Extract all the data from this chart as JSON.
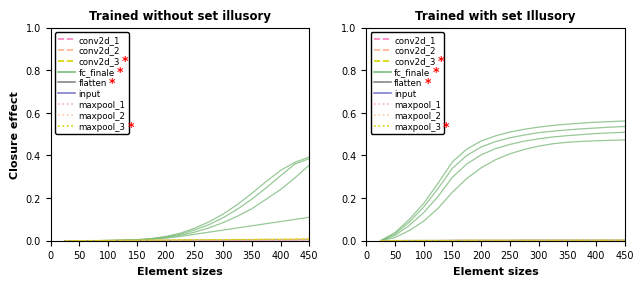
{
  "title_left": "Trained without set illusory",
  "title_right": "Trained with set Illusory",
  "xlabel": "Element sizes",
  "ylabel": "Closure effect",
  "xlim": [
    0,
    450
  ],
  "ylim": [
    0,
    1.0
  ],
  "xticks": [
    0,
    50,
    100,
    150,
    200,
    250,
    300,
    350,
    400,
    450
  ],
  "yticks": [
    0.0,
    0.2,
    0.4,
    0.6,
    0.8,
    1.0
  ],
  "x": [
    25,
    50,
    75,
    100,
    125,
    150,
    175,
    200,
    225,
    250,
    275,
    300,
    325,
    350,
    375,
    400,
    425,
    450
  ],
  "green_color": "#7dbb7d",
  "gray_color": "#888888",
  "left_data": {
    "conv2d_1": [
      0.0,
      0.0,
      0.0,
      0.0,
      0.0,
      0.001,
      0.001,
      0.001,
      0.001,
      0.001,
      0.002,
      0.002,
      0.002,
      0.003,
      0.003,
      0.003,
      0.004,
      0.004
    ],
    "conv2d_2": [
      0.0,
      0.0,
      0.0,
      0.001,
      0.001,
      0.001,
      0.002,
      0.002,
      0.002,
      0.003,
      0.003,
      0.003,
      0.004,
      0.004,
      0.004,
      0.005,
      0.005,
      0.006
    ],
    "conv2d_3": [
      0.0,
      0.0,
      0.001,
      0.001,
      0.002,
      0.002,
      0.003,
      0.003,
      0.004,
      0.004,
      0.005,
      0.005,
      0.006,
      0.006,
      0.007,
      0.007,
      0.008,
      0.008
    ],
    "fc_finale_1": [
      0.0,
      0.0,
      0.0,
      0.001,
      0.002,
      0.004,
      0.007,
      0.012,
      0.02,
      0.03,
      0.04,
      0.05,
      0.06,
      0.07,
      0.08,
      0.09,
      0.1,
      0.11
    ],
    "fc_finale_2": [
      0.0,
      0.0,
      0.0,
      0.001,
      0.002,
      0.004,
      0.008,
      0.015,
      0.025,
      0.04,
      0.06,
      0.085,
      0.115,
      0.15,
      0.195,
      0.24,
      0.295,
      0.355
    ],
    "fc_finale_3": [
      0.0,
      0.0,
      0.0,
      0.001,
      0.002,
      0.004,
      0.009,
      0.017,
      0.03,
      0.05,
      0.075,
      0.108,
      0.148,
      0.195,
      0.248,
      0.305,
      0.36,
      0.385
    ],
    "fc_finale_4": [
      0.0,
      0.0,
      0.0,
      0.001,
      0.002,
      0.005,
      0.01,
      0.02,
      0.035,
      0.058,
      0.088,
      0.125,
      0.17,
      0.222,
      0.278,
      0.33,
      0.368,
      0.393
    ],
    "flatten": [
      0.0,
      0.0,
      0.0,
      0.0,
      0.001,
      0.001,
      0.001,
      0.002,
      0.002,
      0.003,
      0.003,
      0.003,
      0.004,
      0.004,
      0.005,
      0.005,
      0.005,
      0.006
    ],
    "input": [
      0.0,
      0.0,
      0.0,
      0.0,
      0.0,
      0.0,
      0.0,
      0.0,
      0.0,
      0.0,
      0.0,
      0.0,
      0.0,
      0.0,
      0.0,
      0.0,
      0.0,
      0.0
    ],
    "maxpool_1": [
      0.0,
      0.0,
      0.0,
      0.0,
      0.001,
      0.001,
      0.001,
      0.001,
      0.002,
      0.002,
      0.002,
      0.002,
      0.003,
      0.003,
      0.003,
      0.004,
      0.004,
      0.004
    ],
    "maxpool_2": [
      0.0,
      0.0,
      0.0,
      0.001,
      0.001,
      0.001,
      0.002,
      0.002,
      0.002,
      0.003,
      0.003,
      0.004,
      0.004,
      0.004,
      0.005,
      0.005,
      0.006,
      0.006
    ],
    "maxpool_3": [
      0.0,
      0.0,
      0.001,
      0.001,
      0.002,
      0.002,
      0.003,
      0.003,
      0.004,
      0.004,
      0.005,
      0.005,
      0.006,
      0.006,
      0.007,
      0.007,
      0.008,
      0.009
    ]
  },
  "right_data": {
    "conv2d_1": [
      0.0,
      0.0,
      0.0,
      0.0,
      0.0,
      0.001,
      0.001,
      0.001,
      0.001,
      0.001,
      0.001,
      0.001,
      0.001,
      0.001,
      0.001,
      0.001,
      0.001,
      0.001
    ],
    "conv2d_2": [
      0.0,
      0.001,
      0.001,
      0.001,
      0.001,
      0.001,
      0.001,
      0.001,
      0.001,
      0.001,
      0.001,
      0.001,
      0.001,
      0.001,
      0.001,
      0.002,
      0.002,
      0.002
    ],
    "conv2d_3": [
      0.0,
      0.001,
      0.001,
      0.001,
      0.001,
      0.001,
      0.002,
      0.002,
      0.002,
      0.002,
      0.002,
      0.002,
      0.002,
      0.002,
      0.002,
      0.002,
      0.002,
      0.002
    ],
    "fc_finale_1": [
      0.0,
      0.038,
      0.1,
      0.175,
      0.27,
      0.37,
      0.43,
      0.468,
      0.492,
      0.51,
      0.523,
      0.533,
      0.541,
      0.547,
      0.552,
      0.556,
      0.559,
      0.562
    ],
    "fc_finale_2": [
      0.0,
      0.032,
      0.088,
      0.158,
      0.245,
      0.34,
      0.4,
      0.44,
      0.465,
      0.483,
      0.496,
      0.507,
      0.514,
      0.52,
      0.525,
      0.529,
      0.533,
      0.536
    ],
    "fc_finale_3": [
      0.0,
      0.025,
      0.072,
      0.132,
      0.208,
      0.298,
      0.36,
      0.403,
      0.432,
      0.452,
      0.467,
      0.478,
      0.487,
      0.493,
      0.498,
      0.503,
      0.506,
      0.509
    ],
    "fc_finale_4": [
      0.0,
      0.015,
      0.048,
      0.092,
      0.152,
      0.228,
      0.292,
      0.342,
      0.38,
      0.408,
      0.428,
      0.444,
      0.455,
      0.462,
      0.466,
      0.469,
      0.471,
      0.473
    ],
    "flatten": [
      0.0,
      0.0,
      0.001,
      0.001,
      0.001,
      0.002,
      0.002,
      0.002,
      0.002,
      0.002,
      0.003,
      0.003,
      0.003,
      0.003,
      0.003,
      0.003,
      0.003,
      0.003
    ],
    "input": [
      0.0,
      0.0,
      0.0,
      0.0,
      0.0,
      0.0,
      0.0,
      0.0,
      0.0,
      0.0,
      0.0,
      0.0,
      0.0,
      0.0,
      0.0,
      0.0,
      0.0,
      0.0
    ],
    "maxpool_1": [
      0.0,
      0.0,
      0.0,
      0.0,
      0.001,
      0.001,
      0.001,
      0.001,
      0.001,
      0.001,
      0.001,
      0.001,
      0.001,
      0.001,
      0.001,
      0.001,
      0.001,
      0.001
    ],
    "maxpool_2": [
      0.0,
      0.0,
      0.0,
      0.001,
      0.001,
      0.001,
      0.001,
      0.001,
      0.001,
      0.001,
      0.001,
      0.001,
      0.001,
      0.001,
      0.001,
      0.001,
      0.001,
      0.001
    ],
    "maxpool_3": [
      0.0,
      0.001,
      0.001,
      0.001,
      0.001,
      0.001,
      0.002,
      0.002,
      0.002,
      0.002,
      0.002,
      0.002,
      0.002,
      0.002,
      0.002,
      0.002,
      0.002,
      0.002
    ]
  },
  "layers_info": [
    {
      "label": "conv2d_1",
      "color": "#ff80c0",
      "linestyle": "--",
      "has_star": false
    },
    {
      "label": "conv2d_2",
      "color": "#ffb090",
      "linestyle": "--",
      "has_star": false
    },
    {
      "label": "conv2d_3",
      "color": "#d4d400",
      "linestyle": "--",
      "has_star": true
    },
    {
      "label": "fc_finale",
      "color": "#7dbb7d",
      "linestyle": "-",
      "has_star": true
    },
    {
      "label": "flatten",
      "color": "#888888",
      "linestyle": "-",
      "has_star": true
    },
    {
      "label": "input",
      "color": "#8080cc",
      "linestyle": "-",
      "has_star": false
    },
    {
      "label": "maxpool_1",
      "color": "#ffaacc",
      "linestyle": ":",
      "has_star": false
    },
    {
      "label": "maxpool_2",
      "color": "#ffccaa",
      "linestyle": ":",
      "has_star": false
    },
    {
      "label": "maxpool_3",
      "color": "#d4d400",
      "linestyle": ":",
      "has_star": true
    }
  ]
}
